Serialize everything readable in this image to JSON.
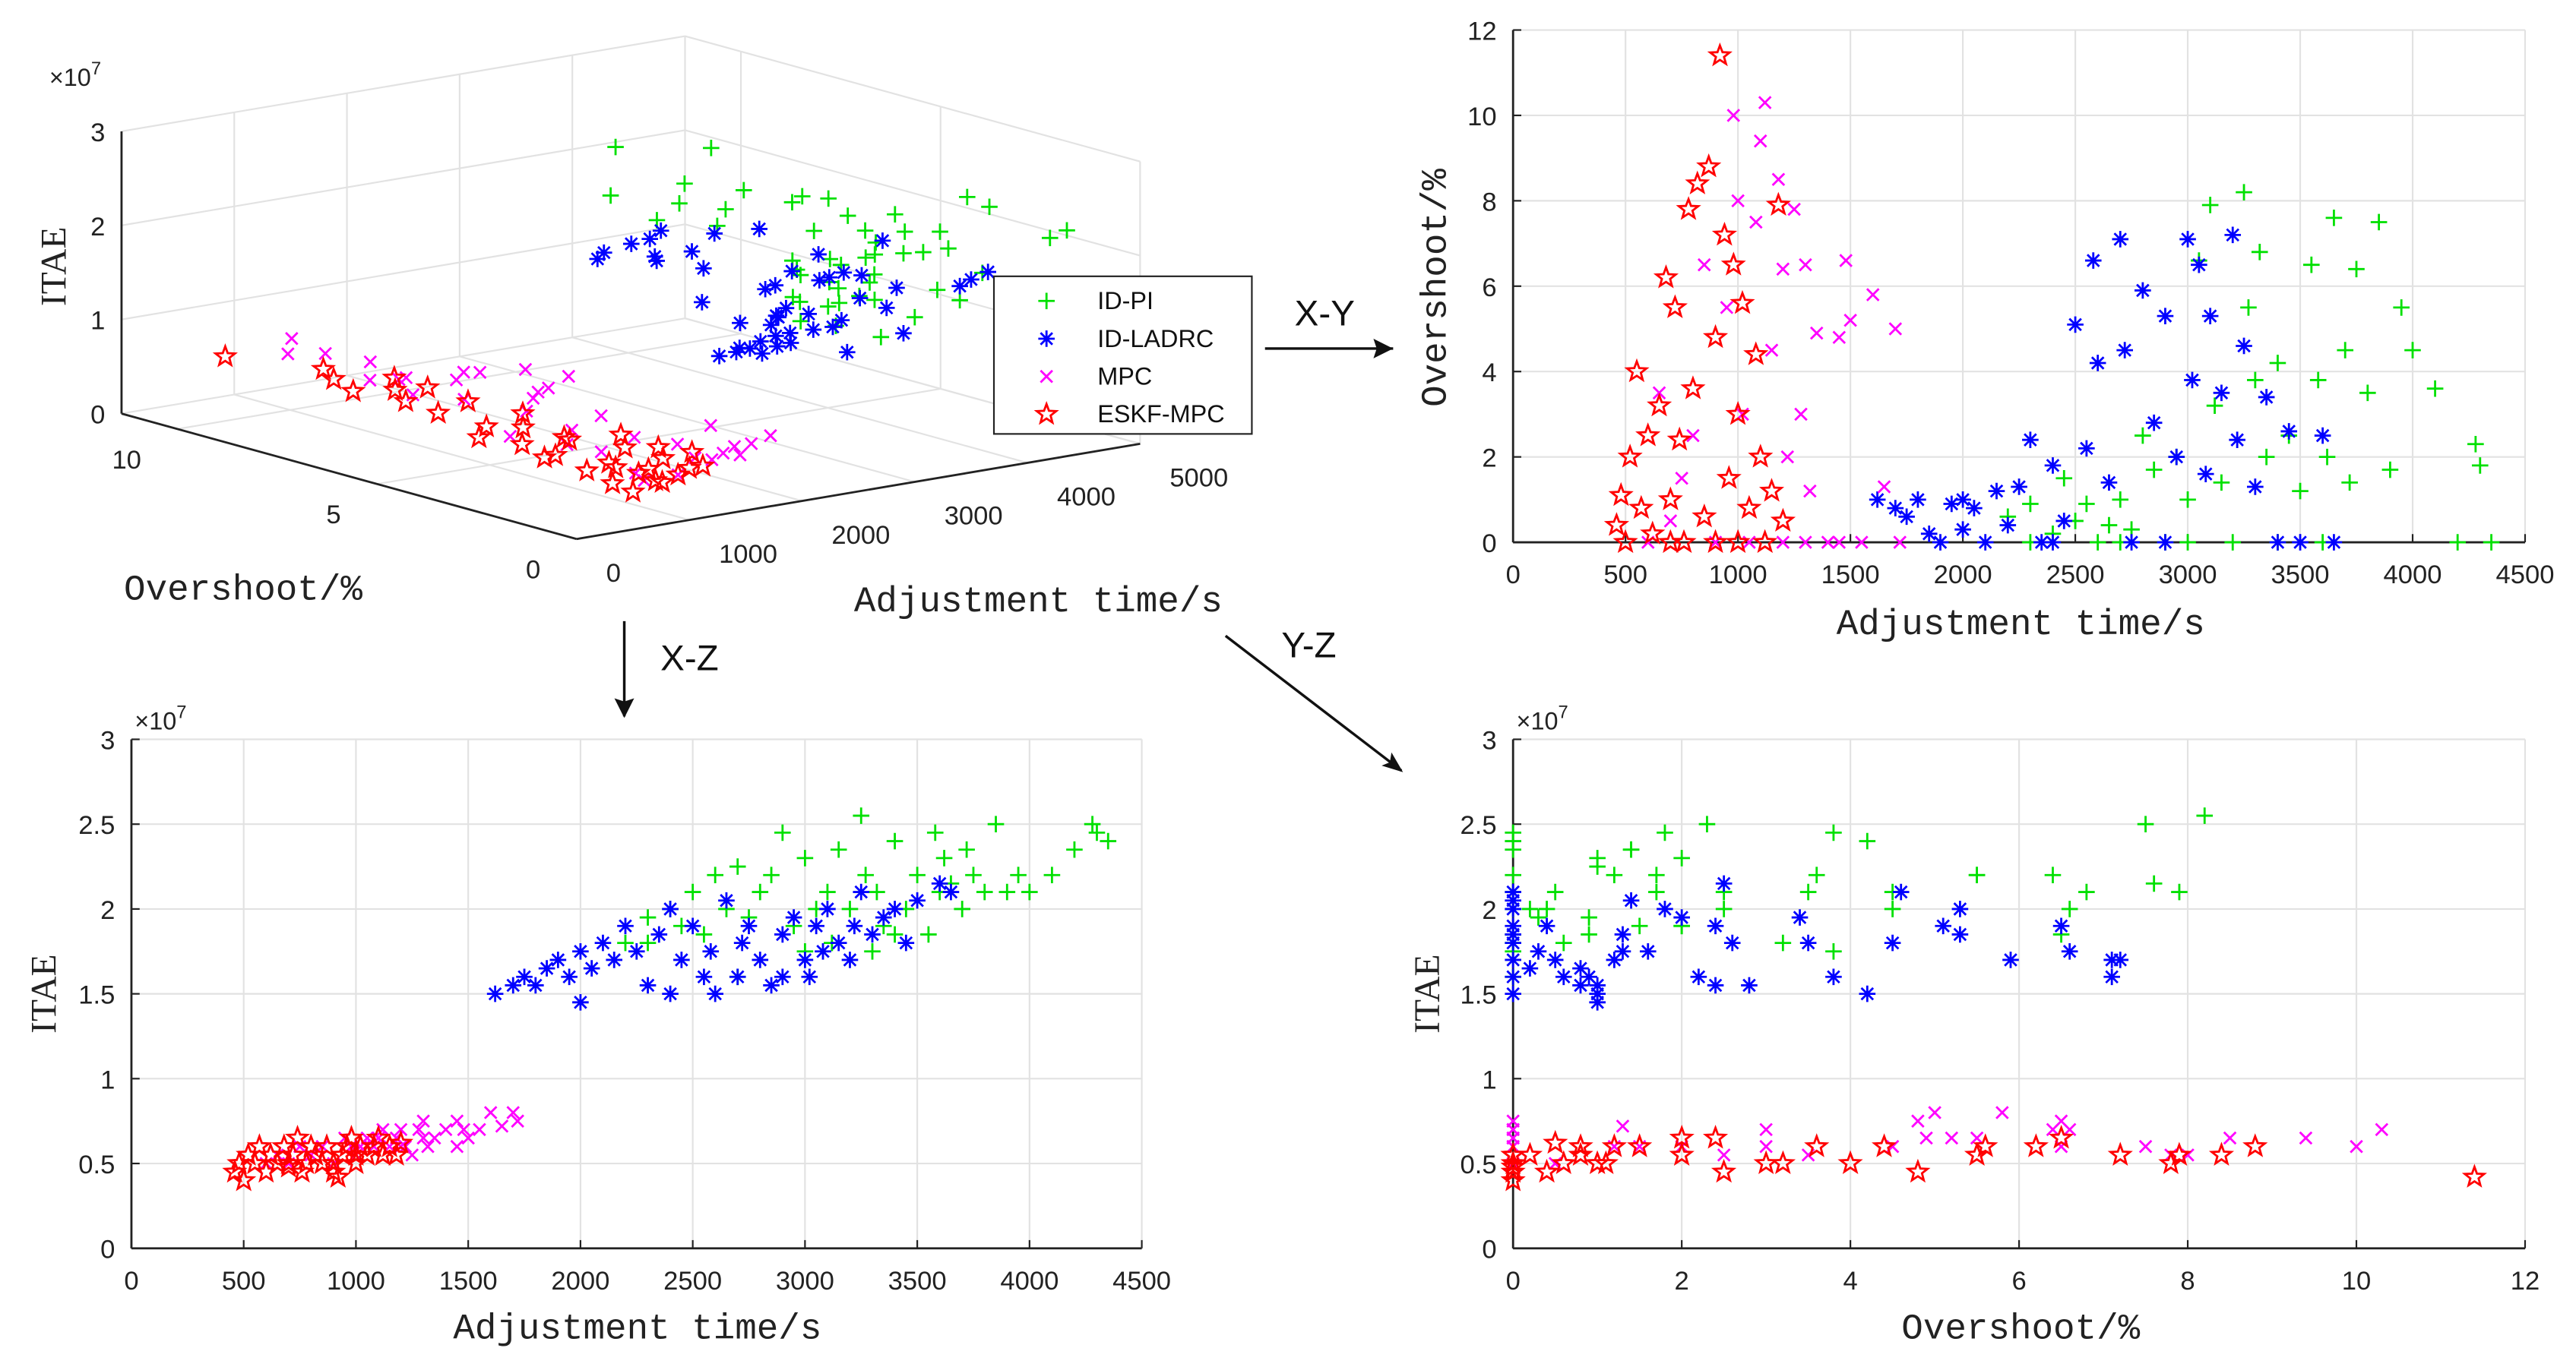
{
  "chart_data": {
    "type": "scatter",
    "point_format": [
      "adjustment_time_s",
      "overshoot_pct",
      "itae_x1e7"
    ],
    "series": [
      {
        "name": "ID-PI",
        "color": "#00e000",
        "marker": "plus",
        "points": [
          [
            2200,
            0.6,
            1.8
          ],
          [
            2300,
            0.9,
            1.95
          ],
          [
            2400,
            0.2,
            2.0
          ],
          [
            2450,
            1.5,
            1.9
          ],
          [
            2500,
            0.5,
            2.1
          ],
          [
            2550,
            0.9,
            1.85
          ],
          [
            2600,
            0,
            2.2
          ],
          [
            2650,
            0.4,
            2.0
          ],
          [
            2700,
            1.0,
            2.25
          ],
          [
            2750,
            0.3,
            1.95
          ],
          [
            2800,
            2.5,
            2.1
          ],
          [
            2850,
            1.7,
            2.2
          ],
          [
            2900,
            0,
            2.45
          ],
          [
            2950,
            2.0,
            1.9
          ],
          [
            3000,
            1.0,
            2.3
          ],
          [
            3050,
            6.6,
            2.0
          ],
          [
            3100,
            7.9,
            2.1
          ],
          [
            3120,
            3.2,
            1.8
          ],
          [
            3150,
            1.4,
            2.35
          ],
          [
            3200,
            0,
            2.0
          ],
          [
            3250,
            8.2,
            2.55
          ],
          [
            3270,
            5.5,
            2.2
          ],
          [
            3300,
            3.8,
            1.75
          ],
          [
            3320,
            6.8,
            2.1
          ],
          [
            3350,
            2.0,
            1.9
          ],
          [
            3400,
            4.2,
            2.4
          ],
          [
            3450,
            2.5,
            2.0
          ],
          [
            3500,
            1.2,
            2.2
          ],
          [
            3550,
            6.5,
            1.85
          ],
          [
            3580,
            3.8,
            2.45
          ],
          [
            3600,
            0,
            2.1
          ],
          [
            3620,
            2.0,
            2.3
          ],
          [
            3650,
            7.6,
            2.15
          ],
          [
            3700,
            4.5,
            2.0
          ],
          [
            3720,
            1.4,
            2.35
          ],
          [
            3750,
            6.4,
            2.2
          ],
          [
            3800,
            3.5,
            2.1
          ],
          [
            3850,
            7.5,
            2.5
          ],
          [
            3900,
            1.7,
            2.1
          ],
          [
            3950,
            5.5,
            2.2
          ],
          [
            4000,
            4.5,
            2.1
          ],
          [
            4100,
            3.6,
            2.2
          ],
          [
            4200,
            0,
            2.35
          ],
          [
            4280,
            2.3,
            2.5
          ],
          [
            4300,
            1.8,
            2.45
          ],
          [
            4350,
            0,
            2.4
          ],
          [
            2300,
            0,
            1.8
          ],
          [
            2700,
            0,
            1.6
          ],
          [
            3000,
            0,
            1.75
          ],
          [
            3400,
            0,
            1.85
          ]
        ]
      },
      {
        "name": "ID-LADRC",
        "color": "#0000ff",
        "marker": "asterisk",
        "points": [
          [
            1620,
            1.0,
            1.5
          ],
          [
            1700,
            0.8,
            1.55
          ],
          [
            1750,
            0.6,
            1.6
          ],
          [
            1800,
            1.0,
            1.55
          ],
          [
            1850,
            0.2,
            1.65
          ],
          [
            1900,
            0,
            1.7
          ],
          [
            1950,
            0.9,
            1.6
          ],
          [
            2000,
            0.3,
            1.75
          ],
          [
            2050,
            0.8,
            1.65
          ],
          [
            2100,
            0,
            1.8
          ],
          [
            2150,
            1.2,
            1.7
          ],
          [
            2200,
            0.4,
            1.9
          ],
          [
            2250,
            1.3,
            1.75
          ],
          [
            2300,
            2.4,
            1.55
          ],
          [
            2350,
            0,
            1.85
          ],
          [
            2400,
            1.8,
            2.0
          ],
          [
            2450,
            0.5,
            1.7
          ],
          [
            2500,
            5.1,
            1.9
          ],
          [
            2550,
            2.2,
            1.6
          ],
          [
            2580,
            6.6,
            1.75
          ],
          [
            2600,
            4.2,
            1.5
          ],
          [
            2650,
            1.4,
            2.05
          ],
          [
            2700,
            7.1,
            1.6
          ],
          [
            2720,
            4.5,
            1.8
          ],
          [
            2750,
            0,
            1.9
          ],
          [
            2800,
            5.9,
            1.7
          ],
          [
            2850,
            2.8,
            1.55
          ],
          [
            2900,
            5.3,
            1.85
          ],
          [
            2950,
            2.0,
            1.95
          ],
          [
            3000,
            7.1,
            1.7
          ],
          [
            3020,
            3.8,
            1.6
          ],
          [
            3050,
            6.5,
            1.9
          ],
          [
            3080,
            1.6,
            1.75
          ],
          [
            3100,
            5.3,
            2.0
          ],
          [
            3150,
            3.5,
            1.8
          ],
          [
            3200,
            7.2,
            1.7
          ],
          [
            3220,
            2.4,
            1.9
          ],
          [
            3250,
            4.6,
            2.1
          ],
          [
            3300,
            1.3,
            1.85
          ],
          [
            3350,
            3.4,
            1.95
          ],
          [
            3400,
            0,
            2.0
          ],
          [
            3450,
            2.6,
            1.8
          ],
          [
            3500,
            0,
            2.05
          ],
          [
            3600,
            2.5,
            2.15
          ],
          [
            3650,
            0,
            2.1
          ],
          [
            2000,
            1.0,
            1.45
          ],
          [
            2400,
            0,
            1.5
          ],
          [
            2900,
            0,
            1.6
          ]
        ]
      },
      {
        "name": "MPC",
        "color": "#ff00ff",
        "marker": "x",
        "points": [
          [
            600,
            0,
            0.5
          ],
          [
            650,
            3.5,
            0.55
          ],
          [
            700,
            0.5,
            0.5
          ],
          [
            750,
            1.5,
            0.6
          ],
          [
            800,
            2.5,
            0.55
          ],
          [
            850,
            6.5,
            0.6
          ],
          [
            900,
            0,
            0.5
          ],
          [
            950,
            5.5,
            0.65
          ],
          [
            980,
            10.0,
            0.6
          ],
          [
            1000,
            8.0,
            0.55
          ],
          [
            1020,
            3.0,
            0.6
          ],
          [
            1050,
            0,
            0.65
          ],
          [
            1080,
            7.5,
            0.6
          ],
          [
            1100,
            9.4,
            0.65
          ],
          [
            1120,
            10.3,
            0.7
          ],
          [
            1150,
            4.5,
            0.6
          ],
          [
            1180,
            8.5,
            0.65
          ],
          [
            1200,
            6.4,
            0.7
          ],
          [
            1220,
            2.0,
            0.6
          ],
          [
            1250,
            7.8,
            0.55
          ],
          [
            1280,
            3.0,
            0.7
          ],
          [
            1300,
            6.5,
            0.75
          ],
          [
            1320,
            1.2,
            0.6
          ],
          [
            1350,
            4.9,
            0.65
          ],
          [
            1400,
            0,
            0.7
          ],
          [
            1450,
            4.8,
            0.75
          ],
          [
            1480,
            6.6,
            0.7
          ],
          [
            1500,
            5.2,
            0.65
          ],
          [
            1550,
            0,
            0.7
          ],
          [
            1600,
            5.8,
            0.8
          ],
          [
            1650,
            1.3,
            0.72
          ],
          [
            1700,
            5.0,
            0.8
          ],
          [
            1720,
            0,
            0.75
          ],
          [
            1200,
            0,
            0.6
          ],
          [
            1300,
            0,
            0.65
          ],
          [
            1450,
            0,
            0.6
          ]
        ]
      },
      {
        "name": "ESKF-MPC",
        "color": "#ff0000",
        "marker": "star",
        "points": [
          [
            460,
            0.4,
            0.45
          ],
          [
            480,
            1.1,
            0.5
          ],
          [
            500,
            0,
            0.4
          ],
          [
            520,
            2.0,
            0.55
          ],
          [
            550,
            4.0,
            0.5
          ],
          [
            570,
            0.8,
            0.6
          ],
          [
            600,
            2.5,
            0.45
          ],
          [
            620,
            0.2,
            0.55
          ],
          [
            650,
            3.2,
            0.5
          ],
          [
            680,
            6.2,
            0.6
          ],
          [
            700,
            1.0,
            0.5
          ],
          [
            720,
            5.5,
            0.55
          ],
          [
            740,
            2.4,
            0.65
          ],
          [
            760,
            0,
            0.45
          ],
          [
            780,
            7.8,
            0.5
          ],
          [
            800,
            3.6,
            0.6
          ],
          [
            820,
            8.4,
            0.55
          ],
          [
            850,
            0.6,
            0.5
          ],
          [
            870,
            8.8,
            0.6
          ],
          [
            900,
            4.8,
            0.45
          ],
          [
            920,
            11.4,
            0.42
          ],
          [
            940,
            7.2,
            0.55
          ],
          [
            960,
            1.5,
            0.6
          ],
          [
            980,
            6.5,
            0.65
          ],
          [
            1000,
            3.0,
            0.5
          ],
          [
            1020,
            5.6,
            0.6
          ],
          [
            1050,
            0.8,
            0.55
          ],
          [
            1080,
            4.4,
            0.6
          ],
          [
            1100,
            2.0,
            0.65
          ],
          [
            1120,
            0,
            0.55
          ],
          [
            1150,
            1.2,
            0.6
          ],
          [
            1180,
            7.9,
            0.55
          ],
          [
            1200,
            0.5,
            0.62
          ],
          [
            700,
            0,
            0.48
          ],
          [
            900,
            0,
            0.5
          ],
          [
            1000,
            0,
            0.55
          ]
        ]
      }
    ],
    "views": [
      {
        "id": "3d",
        "type": "scatter3d",
        "xlabel": "Adjustment time/s",
        "ylabel": "Overshoot/%",
        "zlabel": "ITAE",
        "z_multiplier": "×10",
        "z_exponent": "7",
        "xticks": [
          0,
          1000,
          2000,
          3000,
          4000,
          5000
        ],
        "yticks": [
          0,
          5,
          10
        ],
        "zticks": [
          0,
          1,
          2,
          3
        ],
        "xlim": [
          0,
          5000
        ],
        "ylim": [
          0,
          11.4
        ],
        "zlim": [
          0,
          3
        ],
        "grid": true,
        "legend": "right"
      },
      {
        "id": "xy",
        "projection": "X-Y",
        "xlabel": "Adjustment time/s",
        "ylabel": "Overshoot/%",
        "xticks": [
          0,
          500,
          1000,
          1500,
          2000,
          2500,
          3000,
          3500,
          4000,
          4500
        ],
        "yticks": [
          0,
          2,
          4,
          6,
          8,
          10,
          12
        ],
        "xlim": [
          0,
          4500
        ],
        "ylim": [
          0,
          12
        ],
        "grid": true
      },
      {
        "id": "xz",
        "projection": "X-Z",
        "xlabel": "Adjustment time/s",
        "ylabel": "ITAE",
        "y_multiplier": "×10",
        "y_exponent": "7",
        "xticks": [
          0,
          500,
          1000,
          1500,
          2000,
          2500,
          3000,
          3500,
          4000,
          4500
        ],
        "yticks": [
          0,
          0.5,
          1,
          1.5,
          2,
          2.5,
          3
        ],
        "xlim": [
          0,
          4500
        ],
        "ylim": [
          0,
          3
        ],
        "grid": true
      },
      {
        "id": "yz",
        "projection": "Y-Z",
        "xlabel": "Overshoot/%",
        "ylabel": "ITAE",
        "y_multiplier": "×10",
        "y_exponent": "7",
        "xticks": [
          0,
          2,
          4,
          6,
          8,
          10,
          12
        ],
        "yticks": [
          0,
          0.5,
          1,
          1.5,
          2,
          2.5,
          3
        ],
        "xlim": [
          0,
          12
        ],
        "ylim": [
          0,
          3
        ],
        "grid": true
      }
    ]
  }
}
